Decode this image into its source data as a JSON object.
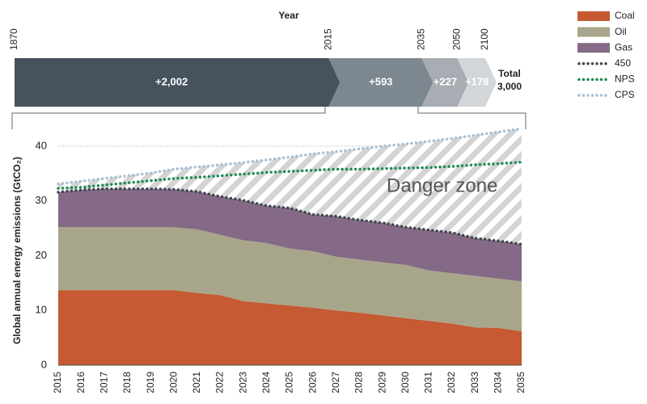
{
  "chart_data": [
    {
      "type": "bar",
      "title": "Year",
      "boundaries": [
        1870,
        2015,
        2035,
        2050,
        2100
      ],
      "values": [
        2002,
        593,
        227,
        178
      ],
      "value_labels": [
        "+2,002",
        "+593",
        "+227",
        "+178"
      ],
      "colors": [
        "#46535e",
        "#7d878f",
        "#a7adb3",
        "#d3d6d9"
      ],
      "total_label": "Total",
      "total": 3000,
      "total_value_label": "3,000"
    },
    {
      "type": "area",
      "ylabel": "Global annual energy emissions (GtCO₂)",
      "annotation": "Danger zone",
      "x": [
        2015,
        2016,
        2017,
        2018,
        2019,
        2020,
        2021,
        2022,
        2023,
        2024,
        2025,
        2026,
        2027,
        2028,
        2029,
        2030,
        2031,
        2032,
        2033,
        2034,
        2035
      ],
      "xlim": [
        2015,
        2035
      ],
      "ylim": [
        0,
        45
      ],
      "yticks": [
        0,
        10,
        20,
        30,
        40
      ],
      "grid": true,
      "series": [
        {
          "name": "Coal",
          "mark": "area",
          "color": "#c55a33",
          "values": [
            13.7,
            13.7,
            13.7,
            13.7,
            13.7,
            13.7,
            13.2,
            12.8,
            11.7,
            11.3,
            10.9,
            10.5,
            10.0,
            9.6,
            9.1,
            8.6,
            8.1,
            7.6,
            6.9,
            6.8,
            6.2
          ]
        },
        {
          "name": "Oil",
          "mark": "area",
          "color": "#a7a68a",
          "values": [
            11.5,
            11.5,
            11.5,
            11.5,
            11.5,
            11.5,
            11.6,
            11.0,
            11.1,
            11.0,
            10.4,
            10.3,
            9.8,
            9.7,
            9.7,
            9.7,
            9.2,
            9.2,
            9.4,
            9.0,
            9.1
          ]
        },
        {
          "name": "Gas",
          "mark": "area",
          "color": "#856a87",
          "values": [
            6.4,
            6.8,
            7.0,
            7.0,
            7.0,
            6.9,
            6.9,
            7.0,
            7.3,
            6.8,
            7.4,
            6.7,
            7.4,
            7.2,
            7.2,
            6.9,
            7.4,
            7.4,
            6.9,
            6.9,
            6.8
          ]
        },
        {
          "name": "450",
          "mark": "line",
          "color": "#3e4750",
          "values": [
            31.6,
            32.0,
            32.2,
            32.2,
            32.2,
            32.1,
            31.7,
            30.8,
            30.1,
            29.1,
            28.7,
            27.5,
            27.2,
            26.5,
            26.0,
            25.2,
            24.7,
            24.2,
            23.2,
            22.7,
            22.1
          ]
        },
        {
          "name": "NPS",
          "mark": "line",
          "color": "#1f8a55",
          "values": [
            32.3,
            32.5,
            32.9,
            33.3,
            33.7,
            34.1,
            34.3,
            34.6,
            34.9,
            35.2,
            35.4,
            35.6,
            35.8,
            35.8,
            35.9,
            36.0,
            36.1,
            36.3,
            36.6,
            36.8,
            37.1
          ]
        },
        {
          "name": "CPS",
          "mark": "line",
          "color": "#a9c0d4",
          "values": [
            33.1,
            33.6,
            34.1,
            34.6,
            35.1,
            35.8,
            36.2,
            36.6,
            37.0,
            37.5,
            38.0,
            38.6,
            39.0,
            39.5,
            40.0,
            40.4,
            40.9,
            41.4,
            42.0,
            42.6,
            43.2
          ]
        }
      ]
    }
  ]
}
